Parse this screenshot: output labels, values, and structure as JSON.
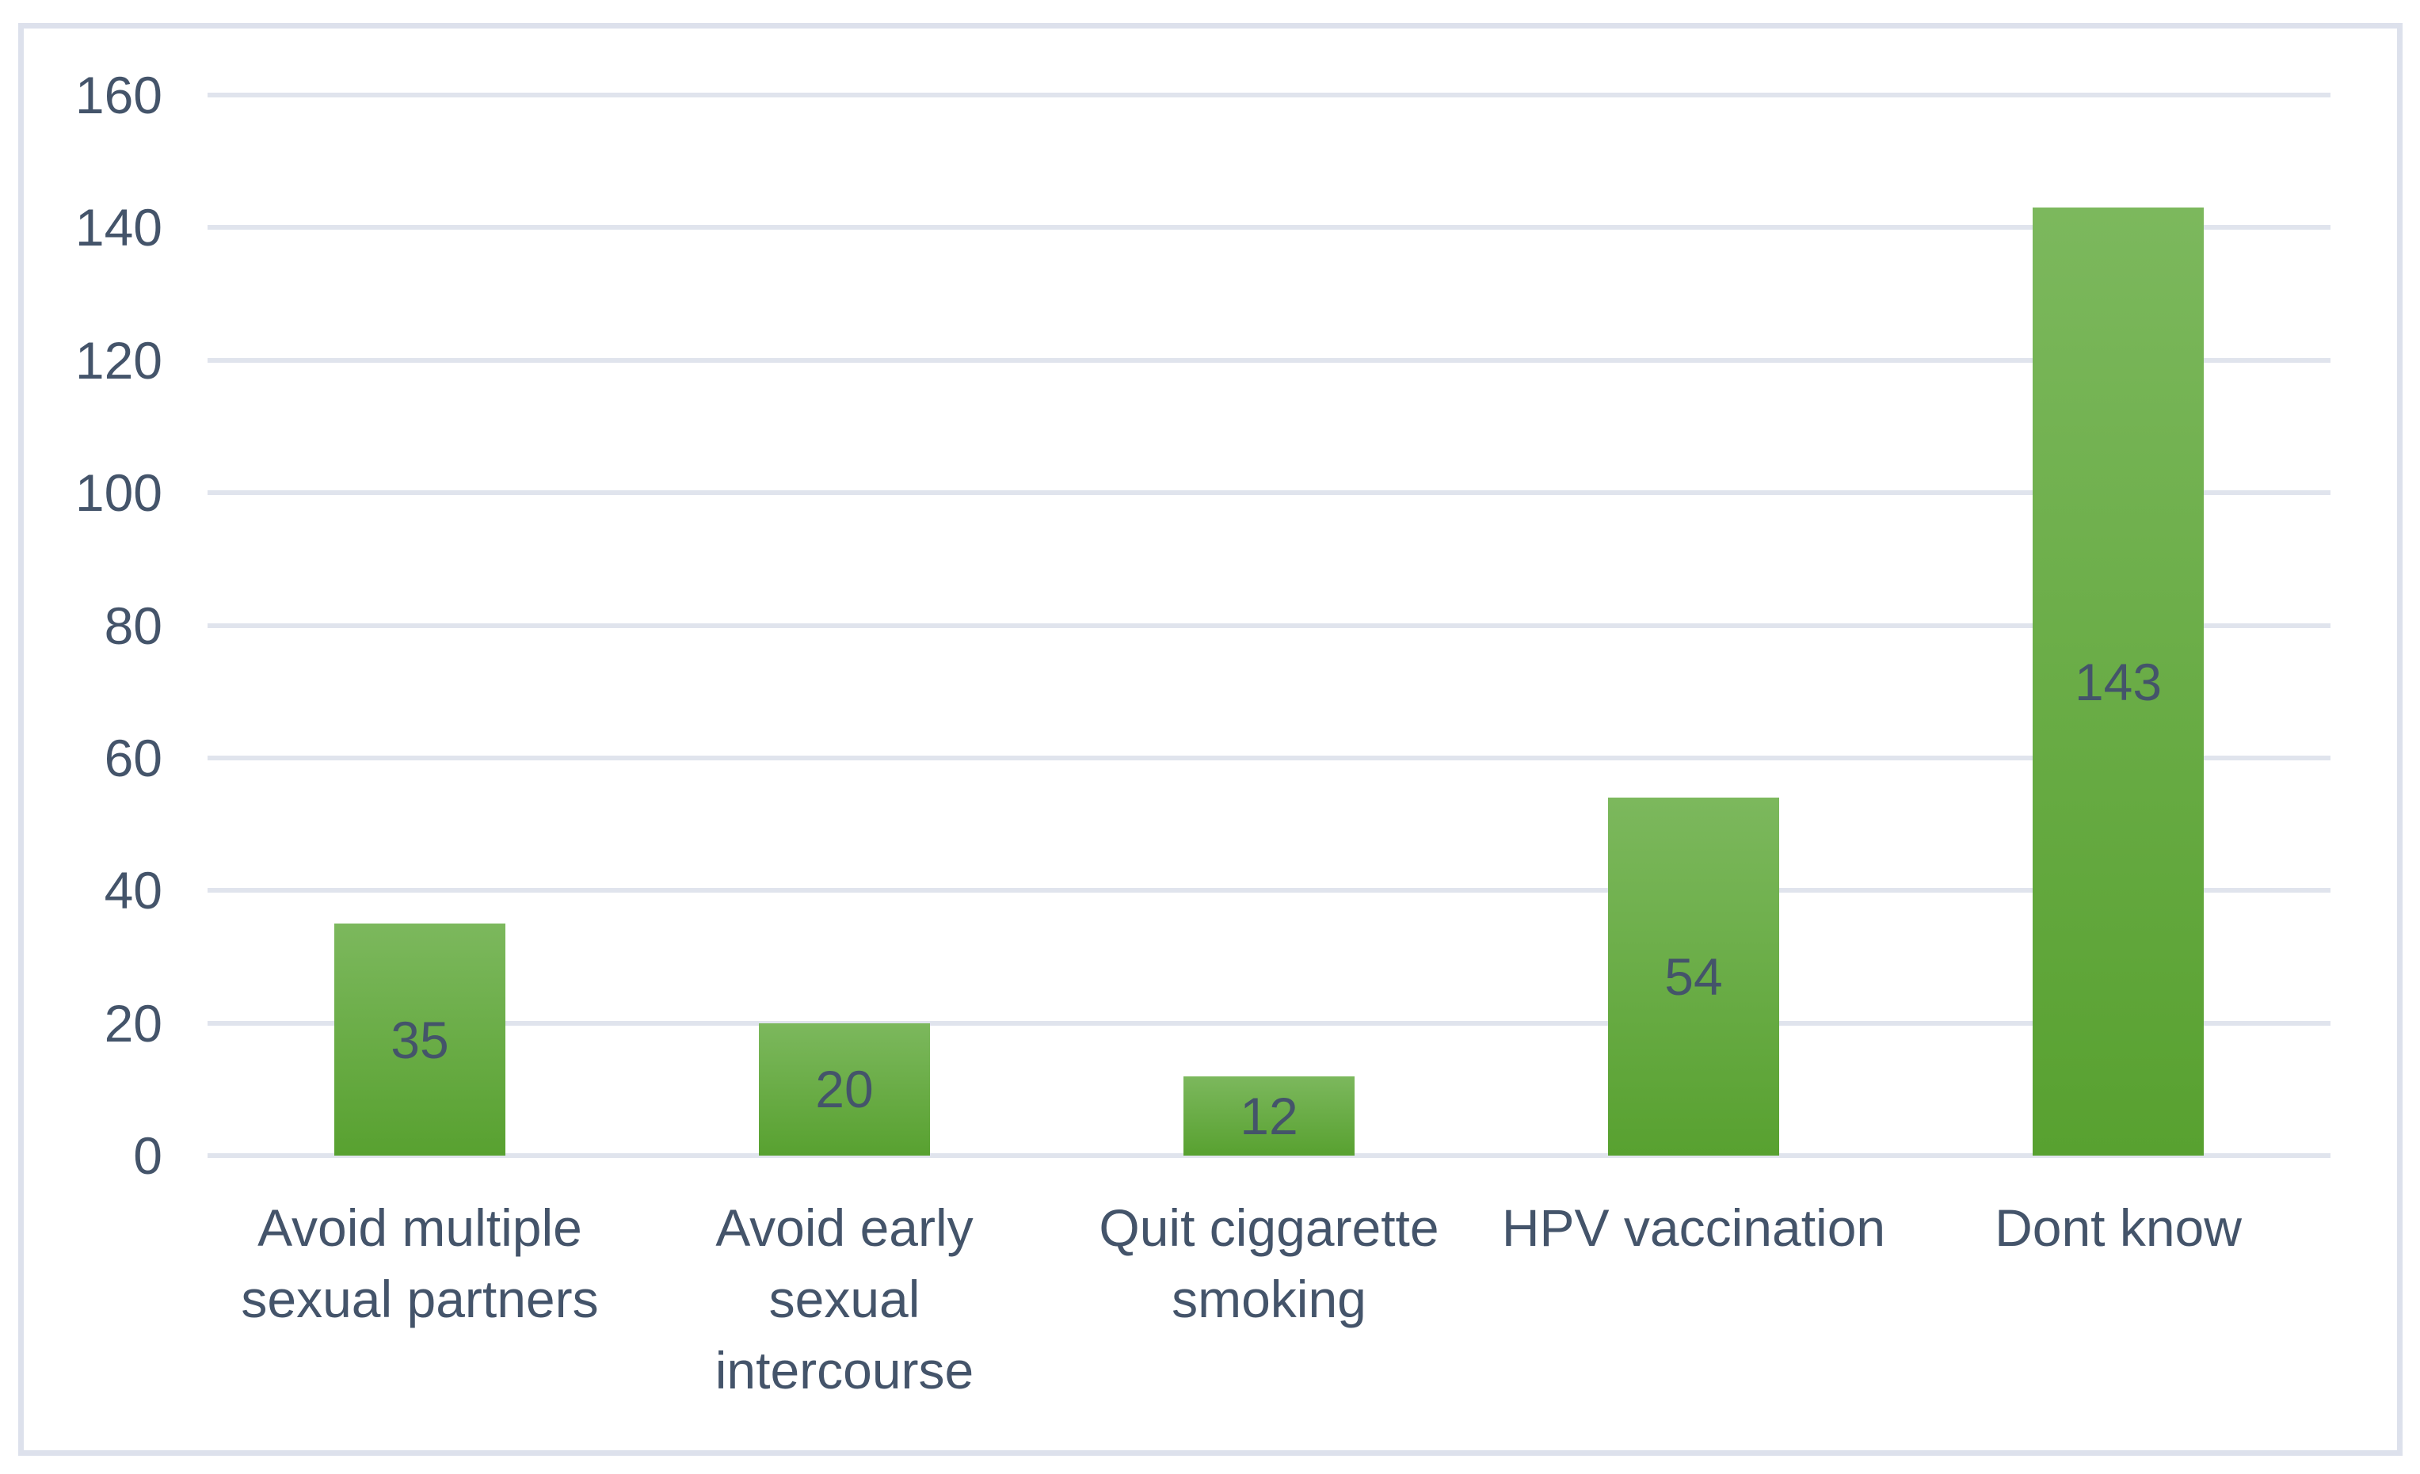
{
  "chart_data": {
    "type": "bar",
    "title": "",
    "xlabel": "",
    "ylabel": "",
    "categories": [
      "Avoid multiple sexual partners",
      "Avoid early sexual intercourse",
      "Quit ciggarette smoking",
      "HPV vaccination",
      "Dont know"
    ],
    "category_display_lines": [
      "Avoid multiple\nsexual partners",
      "Avoid early\nsexual\nintercourse",
      "Quit ciggarette\nsmoking",
      "HPV vaccination",
      "Dont know"
    ],
    "values": [
      35,
      20,
      12,
      54,
      143
    ],
    "data_labels": [
      "35",
      "20",
      "12",
      "54",
      "143"
    ],
    "ylim": [
      0,
      160
    ],
    "yticks": [
      0,
      20,
      40,
      60,
      80,
      100,
      120,
      140,
      160
    ],
    "grid": "horizontal",
    "legend": "none",
    "colors": {
      "bar_gradient_top": "#7cb85d",
      "bar_gradient_bottom": "#58a130",
      "text": "#44546a",
      "gridline": "#e0e4ed",
      "frame_border": "#dde1ec",
      "background": "#ffffff"
    }
  }
}
